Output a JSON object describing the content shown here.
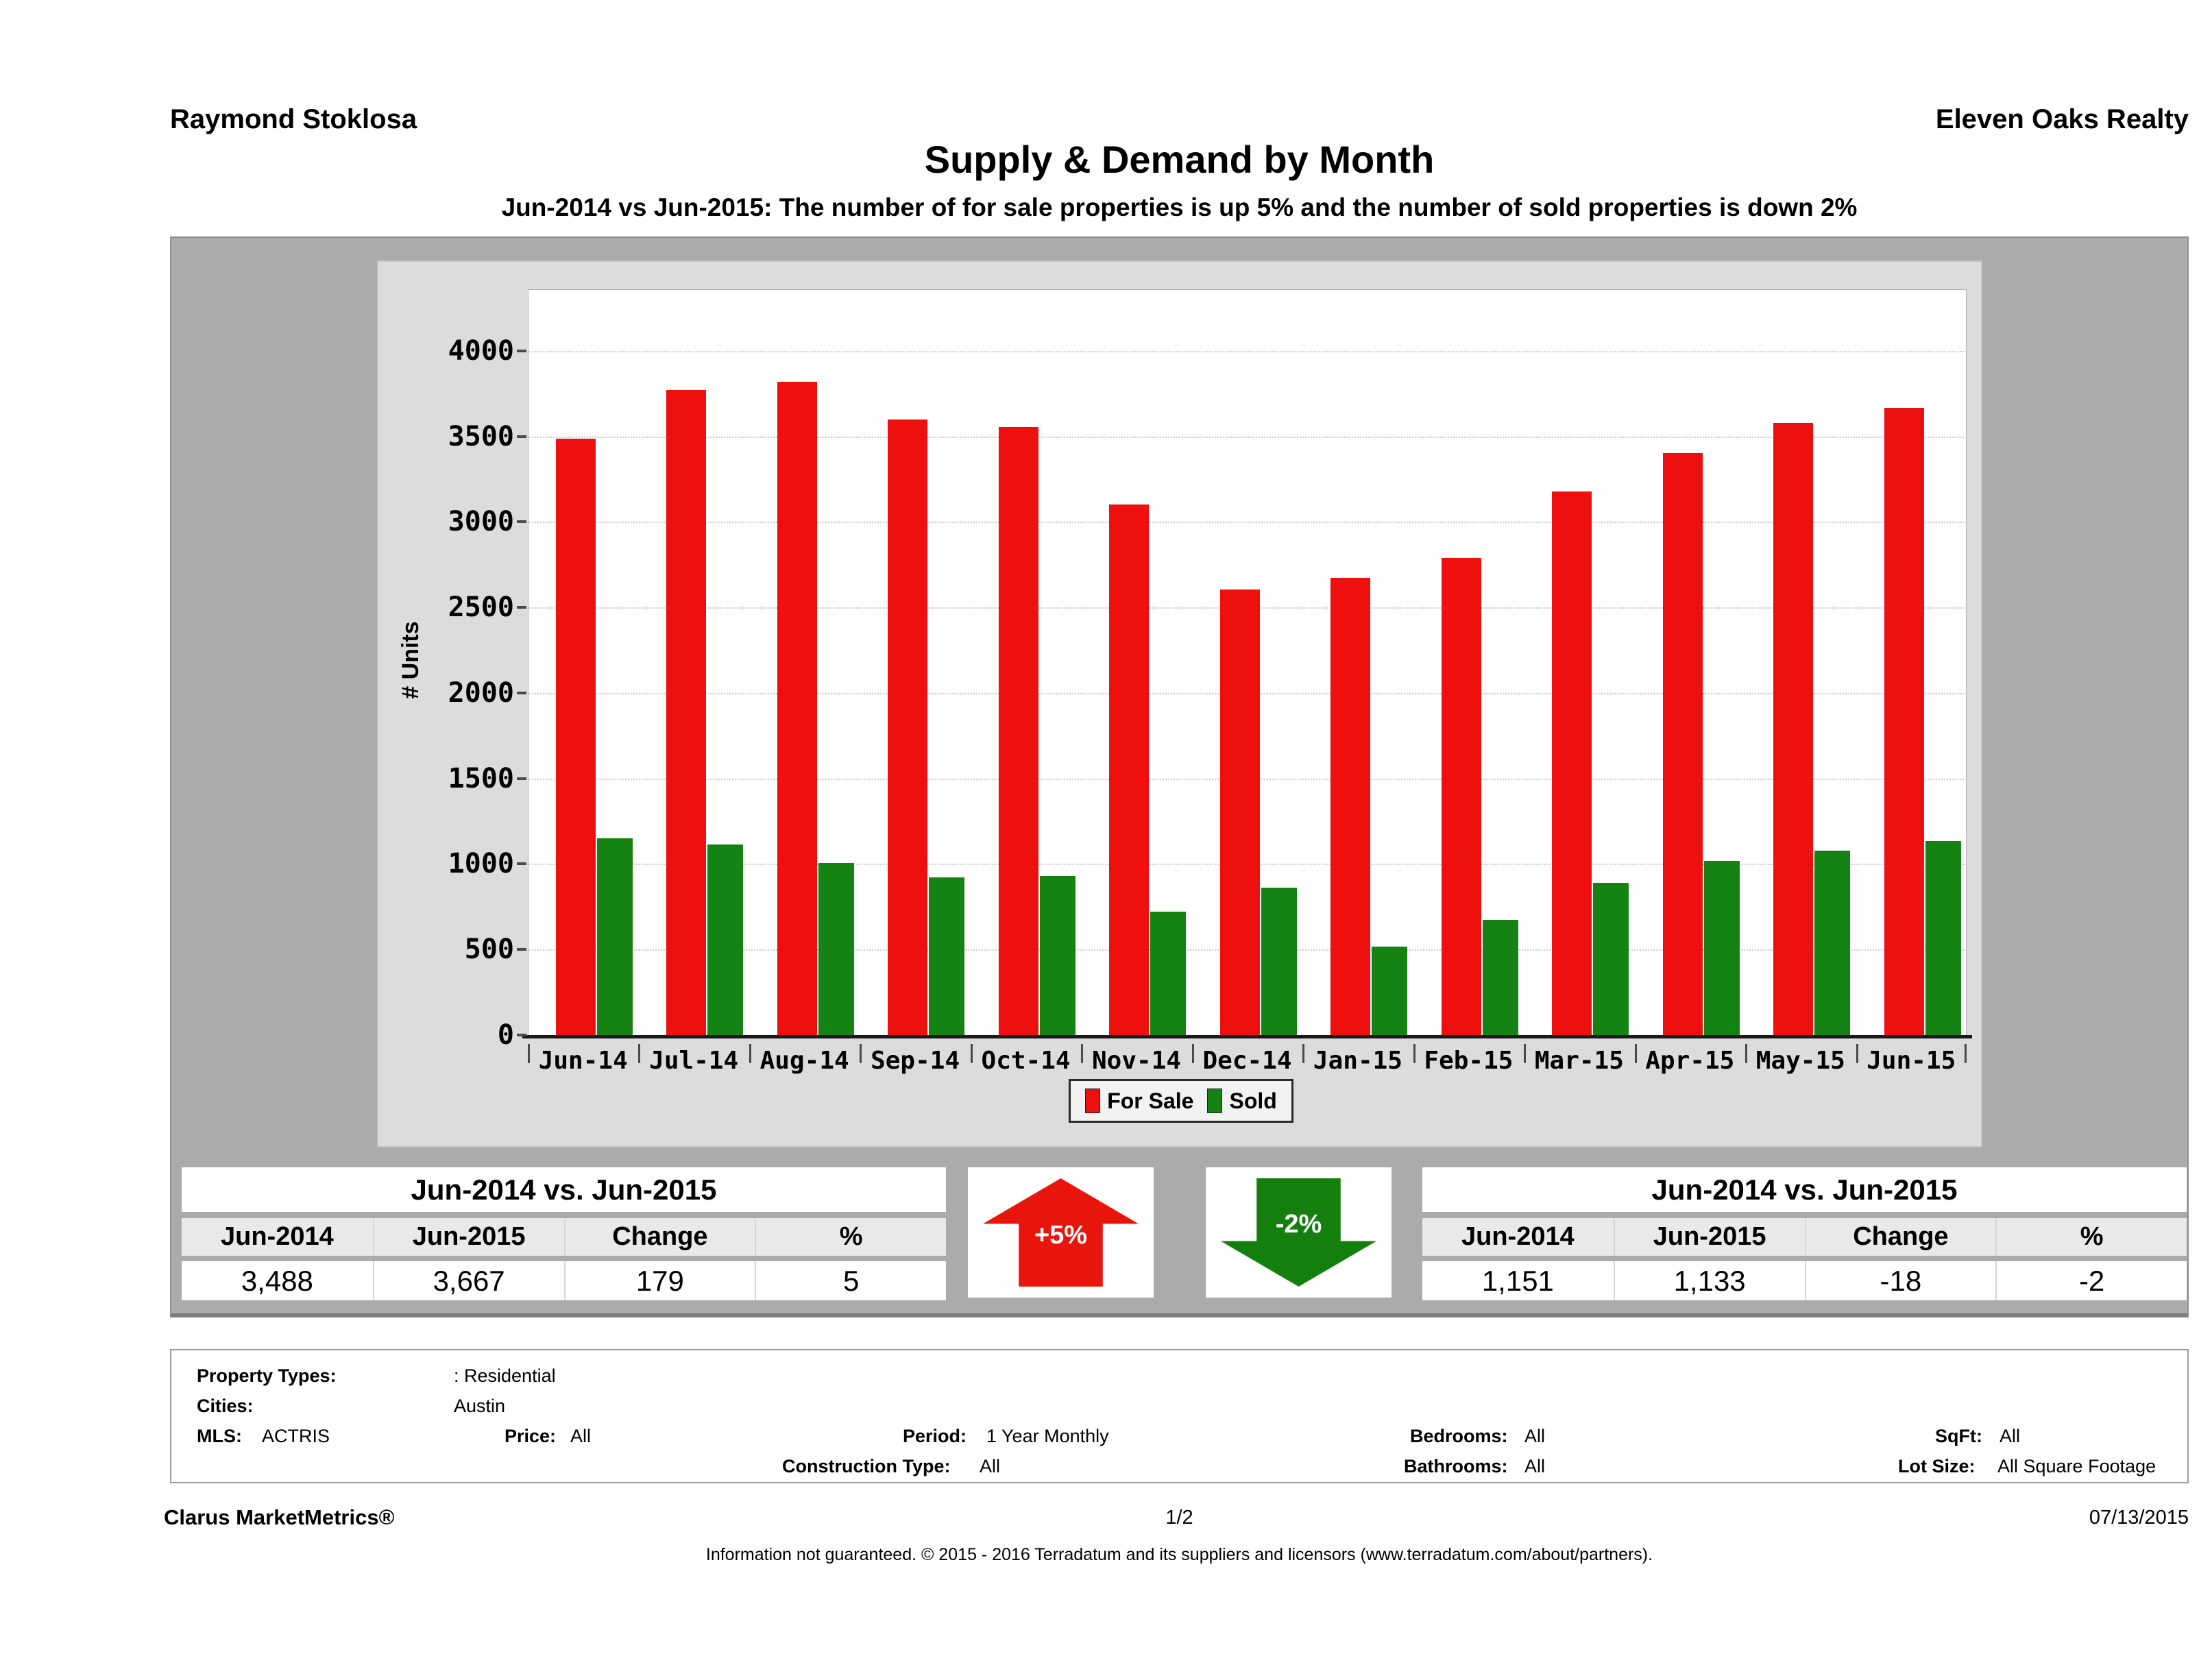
{
  "header": {
    "agent": "Raymond Stoklosa",
    "company": "Eleven Oaks Realty",
    "title": "Supply & Demand by Month",
    "subtitle": "Jun-2014 vs Jun-2015: The number of for sale properties is up 5% and the number of sold properties is down 2%"
  },
  "chart_data": {
    "type": "bar",
    "title": "Supply & Demand by Month",
    "xlabel": "",
    "ylabel": "# Units",
    "ylim": [
      0,
      4360
    ],
    "yticks": [
      0,
      500,
      1000,
      1500,
      2000,
      2500,
      3000,
      3500,
      4000
    ],
    "grid": "horizontal dotted",
    "legend_position": "bottom-center",
    "categories": [
      "Jun-14",
      "Jul-14",
      "Aug-14",
      "Sep-14",
      "Oct-14",
      "Nov-14",
      "Dec-14",
      "Jan-15",
      "Feb-15",
      "Mar-15",
      "Apr-15",
      "May-15",
      "Jun-15"
    ],
    "series": [
      {
        "name": "For Sale",
        "color": "#ee0f0f",
        "values": [
          3488,
          3771,
          3821,
          3600,
          3556,
          3101,
          2605,
          2673,
          2790,
          3178,
          3403,
          3579,
          3667
        ]
      },
      {
        "name": "Sold",
        "color": "#158313",
        "values": [
          1151,
          1115,
          1005,
          920,
          928,
          722,
          860,
          518,
          672,
          890,
          1018,
          1078,
          1133
        ]
      }
    ]
  },
  "comparison_tables": {
    "left": {
      "title": "Jun-2014 vs. Jun-2015",
      "headers": [
        "Jun-2014",
        "Jun-2015",
        "Change",
        "%"
      ],
      "values": [
        "3,488",
        "3,667",
        "179",
        "5"
      ]
    },
    "right": {
      "title": "Jun-2014 vs. Jun-2015",
      "headers": [
        "Jun-2014",
        "Jun-2015",
        "Change",
        "%"
      ],
      "values": [
        "1,151",
        "1,133",
        "-18",
        "-2"
      ]
    }
  },
  "indicators": {
    "up": {
      "label": "+5%",
      "color": "#e8150d"
    },
    "down": {
      "label": "-2%",
      "color": "#157f0e"
    }
  },
  "filters": {
    "property_types_label": "Property Types:",
    "property_types_value": ": Residential",
    "cities_label": "Cities:",
    "cities_value": "Austin",
    "mls_label": "MLS:",
    "mls_value": "ACTRIS",
    "price_label": "Price:",
    "price_value": "All",
    "period_label": "Period:",
    "period_value": "1 Year Monthly",
    "construction_label": "Construction Type:",
    "construction_value": "All",
    "bedrooms_label": "Bedrooms:",
    "bedrooms_value": "All",
    "bathrooms_label": "Bathrooms:",
    "bathrooms_value": "All",
    "sqft_label": "SqFt:",
    "sqft_value": "All",
    "lotsize_label": "Lot Size:",
    "lotsize_value": "All Square Footage"
  },
  "footer": {
    "brand": "Clarus MarketMetrics®",
    "page": "1/2",
    "date": "07/13/2015",
    "disclaimer": "Information not guaranteed. © 2015 - 2016 Terradatum and its suppliers and licensors (www.terradatum.com/about/partners)."
  },
  "colors": {
    "band": "#ababab",
    "panel": "#dcdcdc",
    "for_sale": "#ee0f0f",
    "sold": "#158313"
  }
}
